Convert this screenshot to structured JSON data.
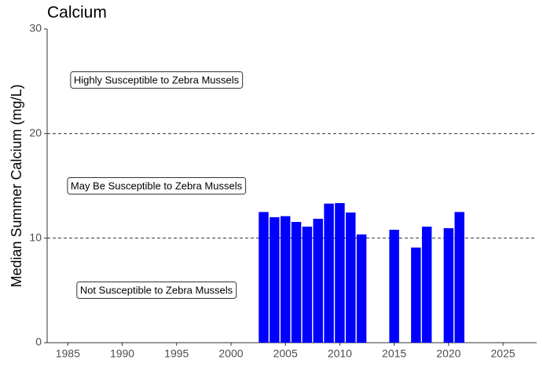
{
  "chart_data": {
    "type": "bar",
    "title": "Calcium",
    "y_label": "Median Summer Calcium (mg/L)",
    "x": [
      2003,
      2004,
      2005,
      2006,
      2007,
      2008,
      2009,
      2010,
      2011,
      2012,
      2015,
      2017,
      2018,
      2020,
      2021
    ],
    "values": [
      12.5,
      12.0,
      12.1,
      11.55,
      11.1,
      11.85,
      13.3,
      13.35,
      12.45,
      10.35,
      10.8,
      9.1,
      11.1,
      10.95,
      12.5
    ],
    "color": "#0000ff",
    "xlim": [
      1983.1,
      2028.1
    ],
    "xticks": [
      1985,
      1990,
      1995,
      2000,
      2005,
      2010,
      2015,
      2020,
      2025
    ],
    "ylim": [
      0,
      30
    ],
    "yticks": [
      0,
      10,
      20,
      30
    ],
    "reference_lines": [
      10,
      20
    ],
    "annotations": [
      "Highly Susceptible to Zebra Mussels",
      "May Be Susceptible to Zebra Mussels",
      "Not Susceptible to Zebra Mussels"
    ],
    "grid": false
  }
}
